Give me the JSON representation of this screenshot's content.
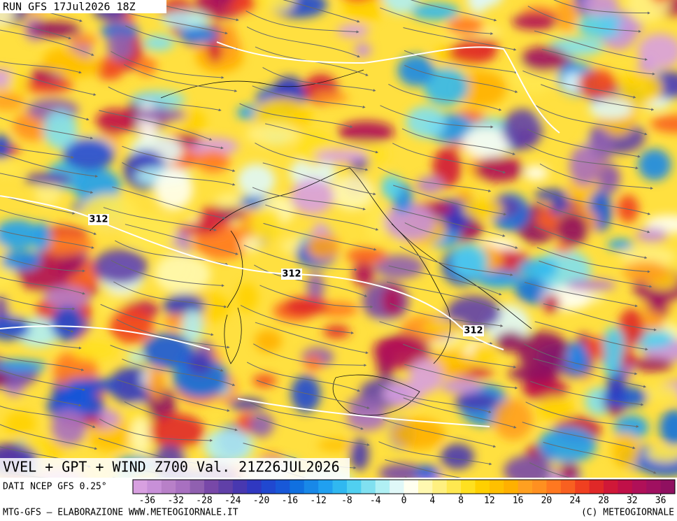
{
  "header": {
    "run": "RUN GFS 17Jul2026 18Z"
  },
  "map": {
    "contour_labels": [
      312,
      312,
      312
    ]
  },
  "title": "VVEL + GPT + WIND Z700 Val. 21Z26JUL2026",
  "source": "DATI NCEP GFS 0.25°",
  "colorbar": {
    "range": [
      -38,
      38
    ],
    "ticks": [
      -36,
      -32,
      -28,
      -24,
      -20,
      -16,
      -12,
      -8,
      -4,
      0,
      4,
      8,
      12,
      16,
      20,
      24,
      28,
      32,
      36
    ],
    "colors": [
      "#d8a0e0",
      "#c890d8",
      "#b880c8",
      "#a870c0",
      "#9060b0",
      "#7848a8",
      "#6040a8",
      "#4838b0",
      "#3038c0",
      "#2048d0",
      "#1858d8",
      "#1070e0",
      "#1888e8",
      "#20a0f0",
      "#30b8f0",
      "#50d0f0",
      "#80e0f0",
      "#b0f0f4",
      "#e0f8f8",
      "#fffff0",
      "#fff8b0",
      "#fff080",
      "#ffe850",
      "#ffe020",
      "#ffd000",
      "#ffc000",
      "#ffb000",
      "#ffa020",
      "#ff9020",
      "#ff7820",
      "#f86020",
      "#f04020",
      "#e02828",
      "#d01838",
      "#c01048",
      "#b01058",
      "#a01060",
      "#901060"
    ]
  },
  "footer": {
    "left": "MTG-GFS — ELABORAZIONE WWW.METEOGIORNALE.IT",
    "right": "(C) METEOGIORNALE"
  }
}
